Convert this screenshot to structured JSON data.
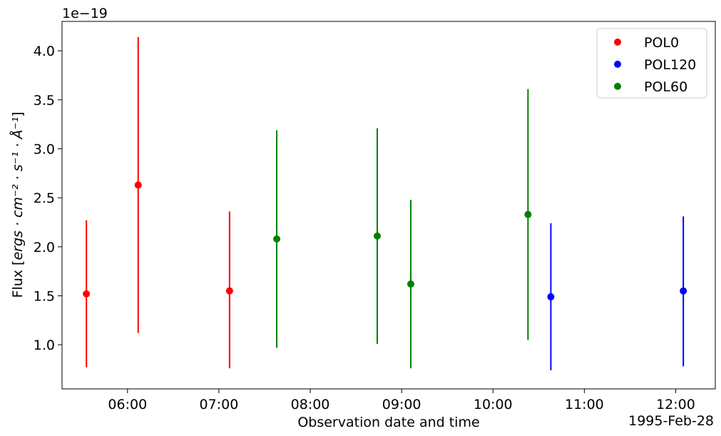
{
  "chart_data": {
    "type": "scatter",
    "multiplier_label": "1e−19",
    "xlabel": "Observation date and time",
    "ylabel": "Flux [",
    "ylabel_math": "ergs · cm⁻² · s⁻¹ · Å⁻¹",
    "ylabel_close": "]",
    "date_label": "1995-Feb-28",
    "xlim": [
      "05:17",
      "12:26"
    ],
    "ylim": [
      0.55,
      4.3
    ],
    "x_ticks": [
      "06:00",
      "07:00",
      "08:00",
      "09:00",
      "10:00",
      "11:00",
      "12:00"
    ],
    "y_ticks": [
      "1.0",
      "1.5",
      "2.0",
      "2.5",
      "3.0",
      "3.5",
      "4.0"
    ],
    "grid": false,
    "legend_position": "top-right",
    "series": [
      {
        "name": "POL0",
        "color": "#ff0000",
        "points": [
          {
            "x": "05:33",
            "y": 1.52,
            "ylow": 0.77,
            "yhigh": 2.27
          },
          {
            "x": "06:07",
            "y": 2.63,
            "ylow": 1.12,
            "yhigh": 4.14
          },
          {
            "x": "07:07",
            "y": 1.55,
            "ylow": 0.76,
            "yhigh": 2.36
          }
        ]
      },
      {
        "name": "POL120",
        "color": "#0000ff",
        "points": [
          {
            "x": "10:38",
            "y": 1.49,
            "ylow": 0.74,
            "yhigh": 2.24
          },
          {
            "x": "12:05",
            "y": 1.55,
            "ylow": 0.78,
            "yhigh": 2.31
          }
        ]
      },
      {
        "name": "POL60",
        "color": "#008000",
        "points": [
          {
            "x": "07:38",
            "y": 2.08,
            "ylow": 0.97,
            "yhigh": 3.19
          },
          {
            "x": "08:44",
            "y": 2.11,
            "ylow": 1.01,
            "yhigh": 3.21
          },
          {
            "x": "09:06",
            "y": 1.62,
            "ylow": 0.76,
            "yhigh": 2.48
          },
          {
            "x": "10:23",
            "y": 2.33,
            "ylow": 1.05,
            "yhigh": 3.61
          }
        ]
      }
    ]
  }
}
